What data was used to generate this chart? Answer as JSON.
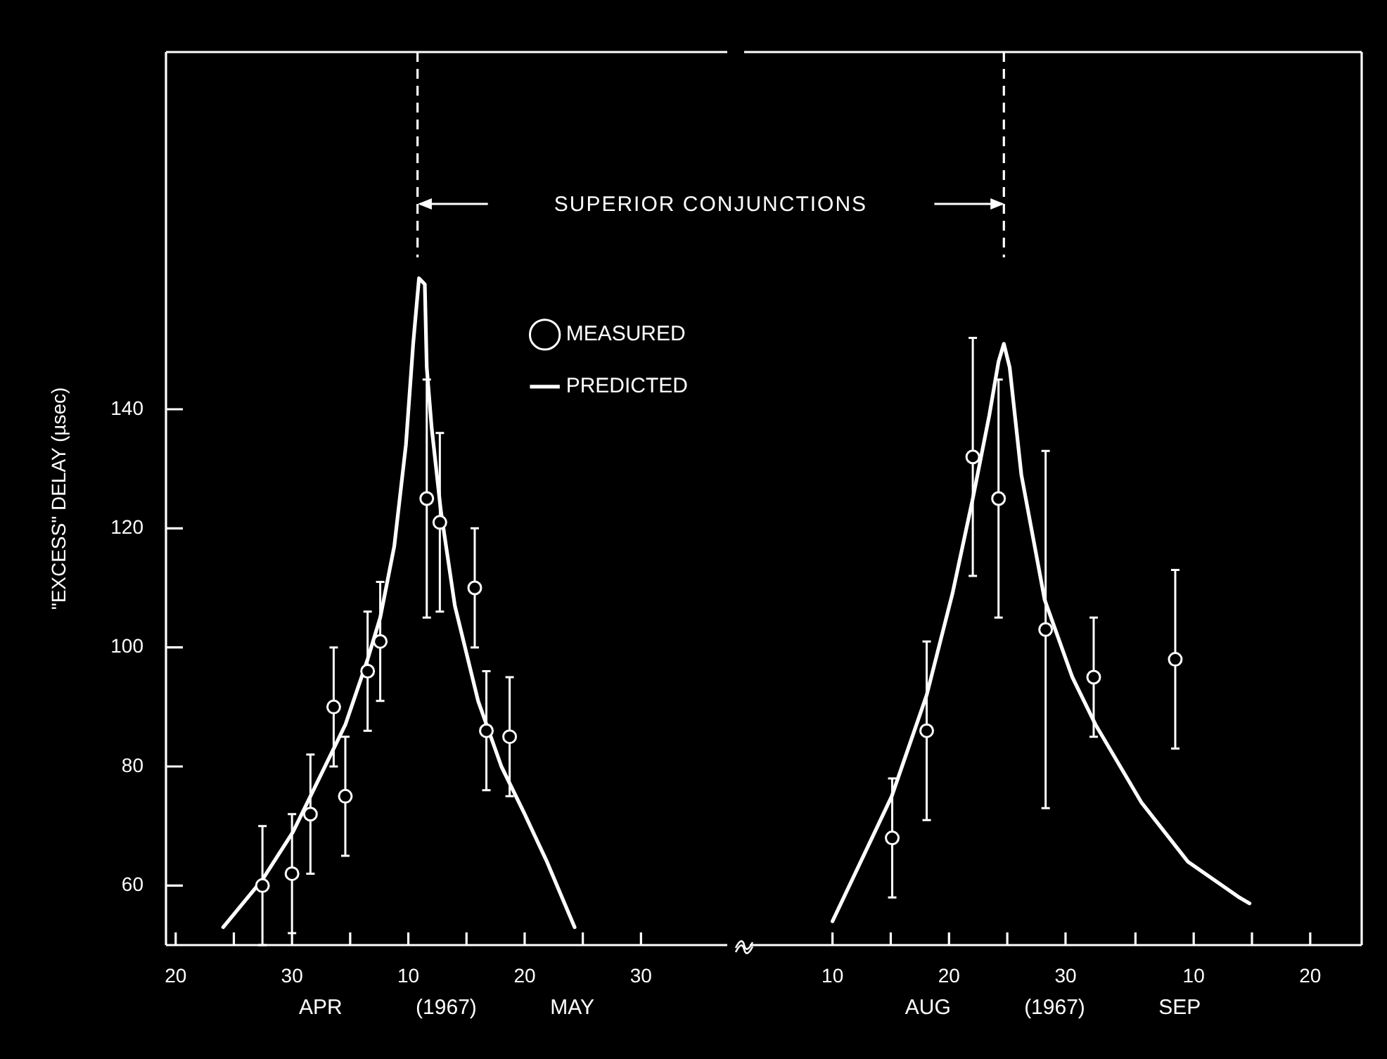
{
  "chart_data": [
    {
      "type": "scatter",
      "ylabel": "\"EXCESS\" DELAY (µsec)",
      "xlabel": "APR (1967) MAY",
      "annotations": [
        "SUPERIOR CONJUNCTIONS"
      ],
      "xlim": [
        "1967-04-19T04:00",
        "1967-06-06T10:00"
      ],
      "xticks": [
        {
          "value": "1967-04-20",
          "label": "20"
        },
        {
          "value": "1967-04-25",
          "label": null
        },
        {
          "value": "1967-04-30",
          "label": "30"
        },
        {
          "value": "1967-05-05",
          "label": null
        },
        {
          "value": "1967-05-10",
          "label": "10"
        },
        {
          "value": "1967-05-15",
          "label": null
        },
        {
          "value": "1967-05-20",
          "label": "20"
        },
        {
          "value": "1967-05-25",
          "label": null
        },
        {
          "value": "1967-05-30",
          "label": "30"
        }
      ],
      "ylim": [
        50,
        200
      ],
      "yticks": [
        60,
        80,
        100,
        120,
        140
      ],
      "legend": "top right",
      "marker": "circle",
      "ref_lines": [
        {
          "axis": "x",
          "value": "1967-05-10T19:00",
          "line_style": "dashed"
        }
      ],
      "series": [
        {
          "name": "MEASURED",
          "type": "scatter",
          "color": "#ffffff",
          "x": [
            "1967-04-27T11:00",
            "1967-04-30",
            "1967-05-01T14:00",
            "1967-05-03T14:00",
            "1967-05-04T14:00",
            "1967-05-06T12:00",
            "1967-05-07T14:00",
            "1967-05-11T14:00",
            "1967-05-12T17:00",
            "1967-05-15T17:00",
            "1967-05-16T17:00",
            "1967-05-18T17:00"
          ],
          "values": [
            60,
            62,
            72,
            90,
            75,
            96,
            101,
            125,
            121,
            110,
            86,
            85
          ],
          "errors": [
            10,
            10,
            10,
            10,
            10,
            10,
            10,
            20,
            15,
            10,
            10,
            10
          ]
        },
        {
          "name": "PREDICTED",
          "type": "line",
          "color": "#ffffff",
          "marker": "none",
          "x": [
            "1967-04-24T02:00",
            "1967-04-27T11:00",
            "1967-04-30T02:00",
            "1967-05-01T14:00",
            "1967-05-03T14:00",
            "1967-05-04T14:00",
            "1967-05-06T12:00",
            "1967-05-07T14:00",
            "1967-05-08T19:00",
            "1967-05-09T19:00",
            "1967-05-10T10:00",
            "1967-05-10T22:00",
            "1967-05-11T10:00",
            "1967-05-11T14:00",
            "1967-05-12T00:00",
            "1967-05-12T19:00",
            "1967-05-14",
            "1967-05-16",
            "1967-05-18",
            "1967-05-20",
            "1967-05-21T22:00",
            "1967-05-24T07:00"
          ],
          "values": [
            53,
            61,
            69,
            75,
            83,
            87,
            98,
            105,
            117,
            134,
            151,
            162,
            161,
            147,
            137,
            123,
            107,
            91,
            80,
            72,
            64,
            53
          ]
        }
      ]
    },
    {
      "type": "scatter",
      "xlabel": "AUG (1967) SEP",
      "tick_labels": "x",
      "xlim": [
        "1967-08-02T10:00",
        "1967-09-24T10:00"
      ],
      "xticks": [
        {
          "value": "1967-08-10",
          "label": "10"
        },
        {
          "value": "1967-08-15",
          "label": null
        },
        {
          "value": "1967-08-20",
          "label": "20"
        },
        {
          "value": "1967-08-25",
          "label": null
        },
        {
          "value": "1967-08-30",
          "label": "30"
        },
        {
          "value": "1967-09-05",
          "label": null
        },
        {
          "value": "1967-09-10",
          "label": "10"
        },
        {
          "value": "1967-09-15",
          "label": null
        },
        {
          "value": "1967-09-20",
          "label": "20"
        }
      ],
      "ylim": [
        50,
        200
      ],
      "yticks": [
        60,
        80,
        100,
        120,
        140
      ],
      "marker": "circle",
      "ref_lines": [
        {
          "axis": "x",
          "value": "1967-08-24T17:00",
          "line_style": "dashed"
        }
      ],
      "series": [
        {
          "type": "scatter",
          "color": "#ffffff",
          "x": [
            "1967-08-15T03:00",
            "1967-08-18T02:00",
            "1967-08-22T01:00",
            "1967-08-24T06:00",
            "1967-08-28T07:00",
            "1967-09-01T10:00",
            "1967-09-08T10:00"
          ],
          "values": [
            68,
            86,
            132,
            125,
            103,
            95,
            98
          ],
          "errors": [
            10,
            15,
            20,
            20,
            30,
            10,
            15
          ]
        },
        {
          "type": "line",
          "color": "#ffffff",
          "marker": "none",
          "x": [
            "1967-08-10",
            "1967-08-15T02:00",
            "1967-08-18T02:00",
            "1967-08-20T07:00",
            "1967-08-22T01:00",
            "1967-08-23T11:00",
            "1967-08-24T06:00",
            "1967-08-24T17:00",
            "1967-08-25T05:00",
            "1967-08-26T05:00",
            "1967-08-28T05:00",
            "1967-08-30T14:00",
            "1967-09-01T14:00",
            "1967-09-05T12:00",
            "1967-09-09T12:00",
            "1967-09-13T22:00",
            "1967-09-14T19:00"
          ],
          "values": [
            54,
            75,
            92,
            109,
            125,
            139,
            148,
            151,
            147,
            129,
            108,
            95,
            87,
            74,
            64,
            58,
            57
          ]
        }
      ]
    }
  ]
}
